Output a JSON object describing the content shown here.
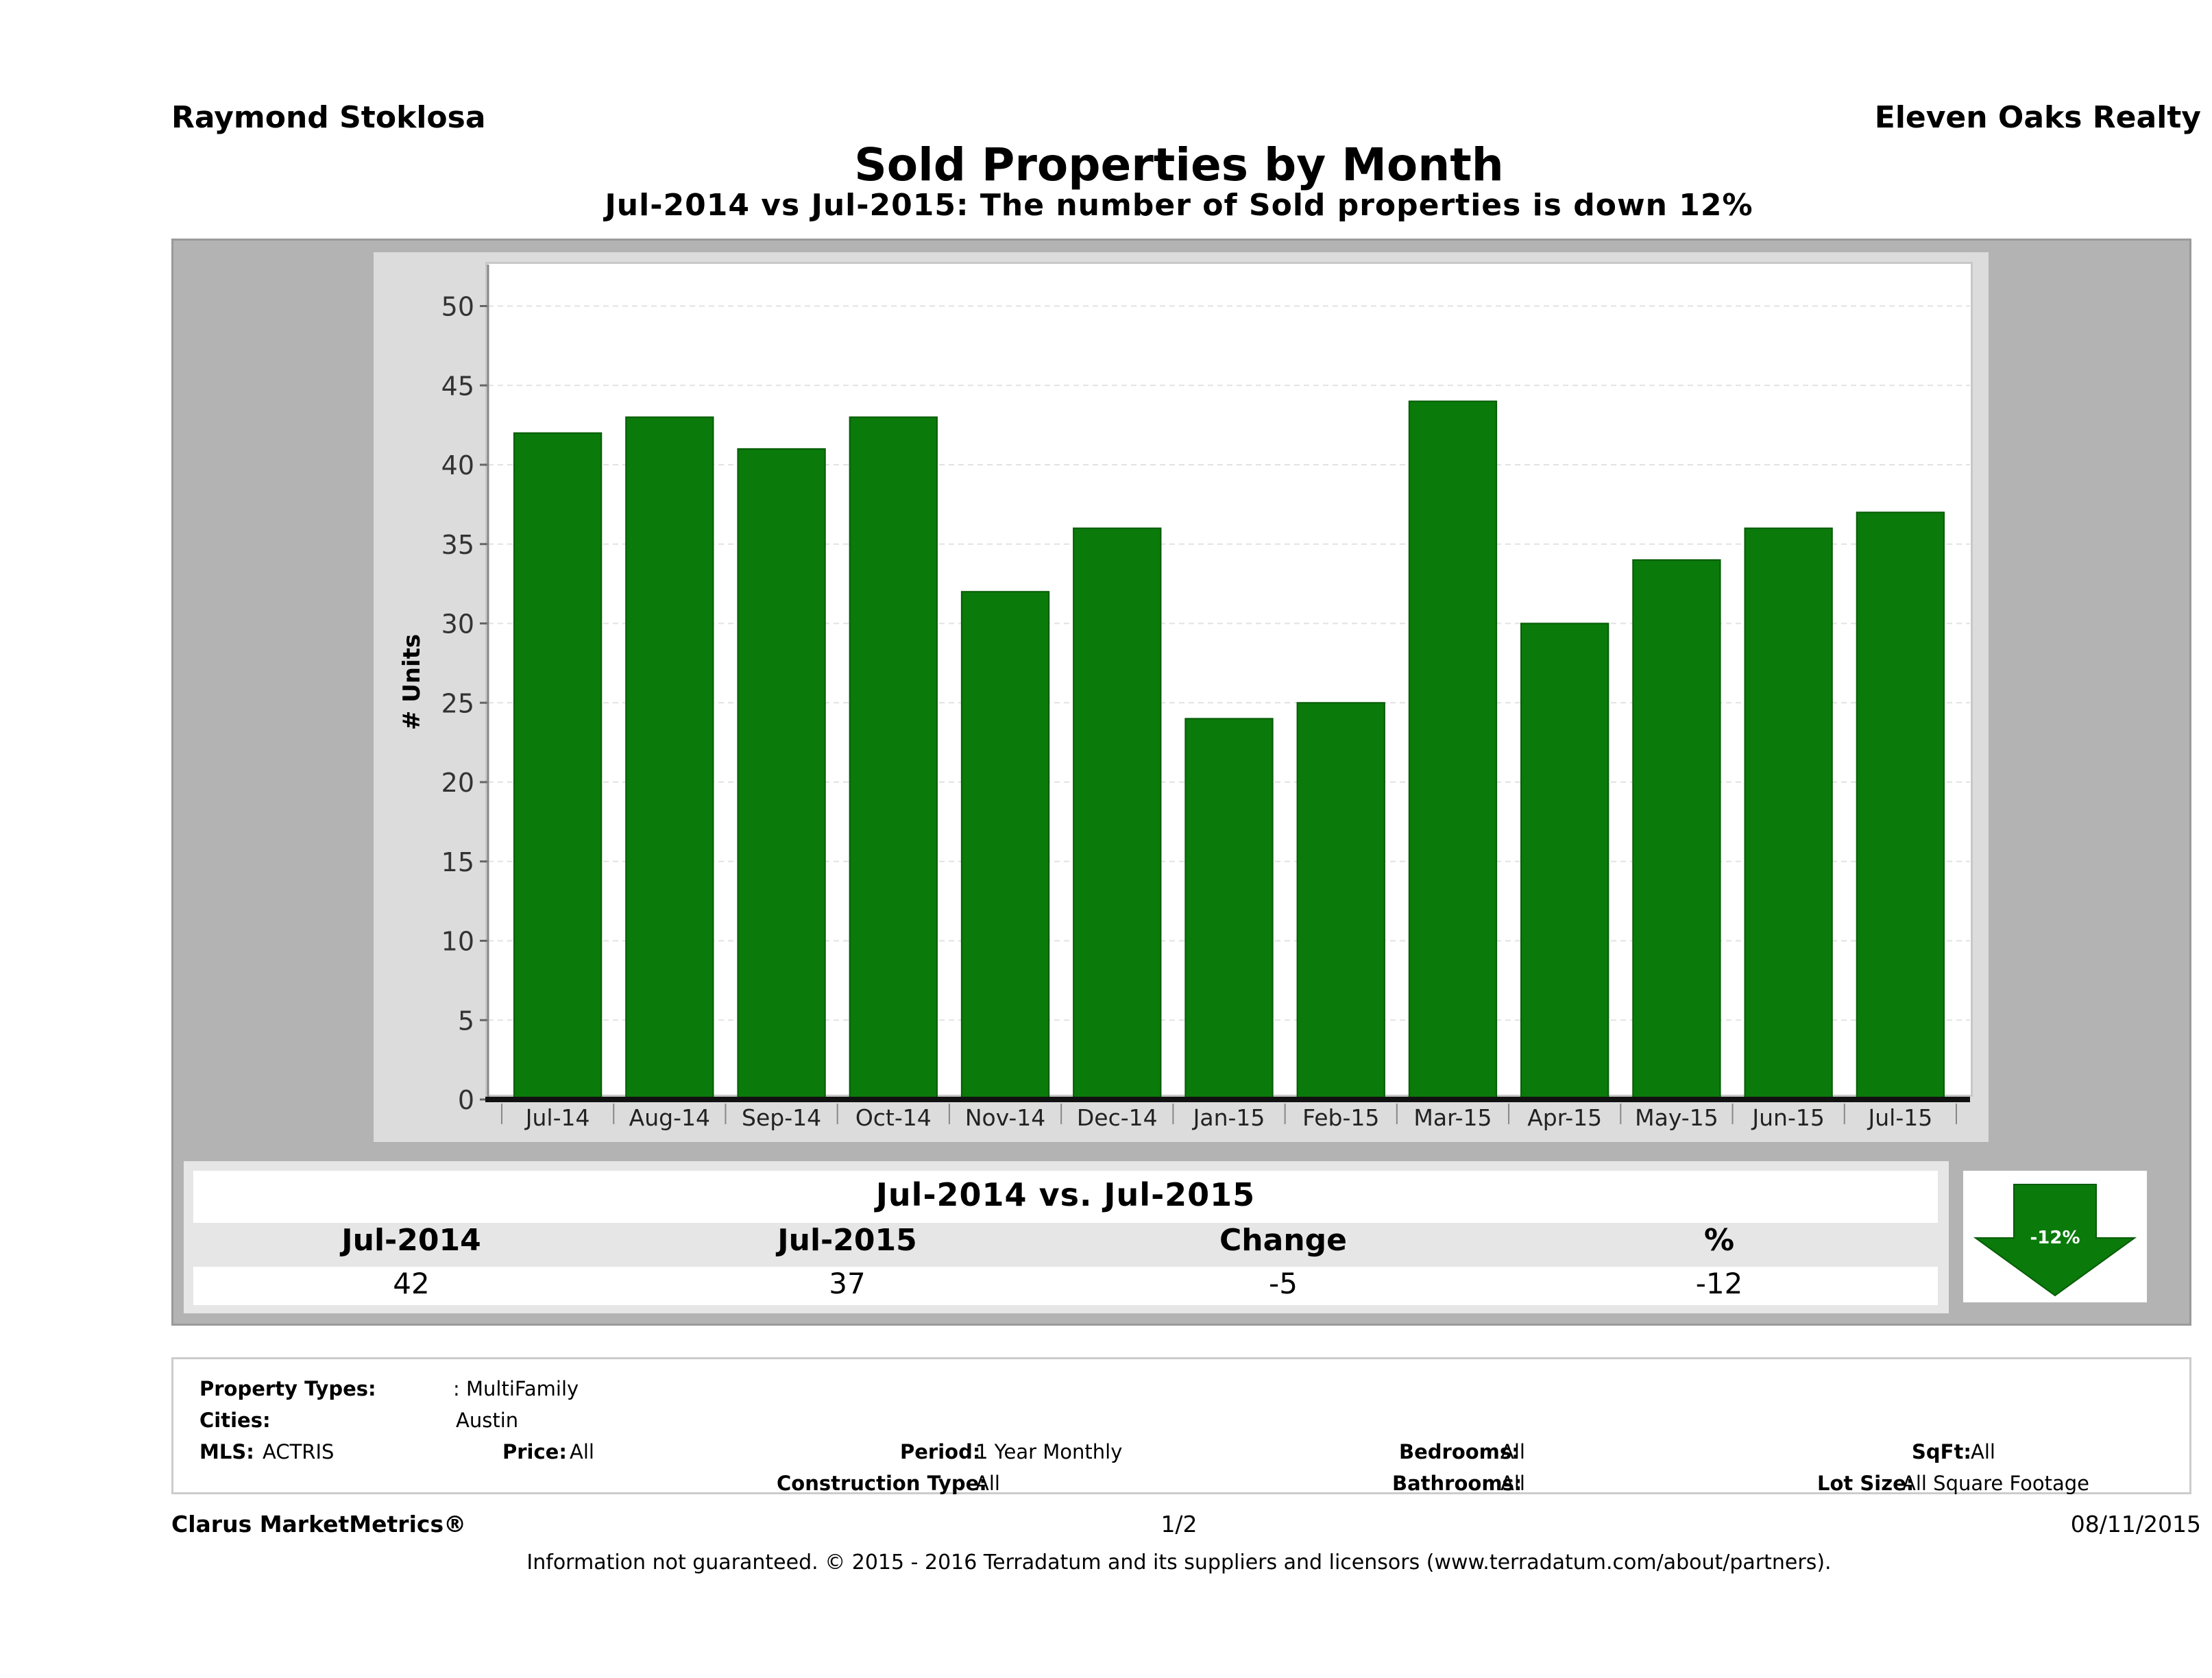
{
  "header": {
    "agent": "Raymond Stoklosa",
    "company": "Eleven Oaks Realty",
    "title": "Sold Properties by Month",
    "subtitle": "Jul-2014 vs Jul-2015: The number of Sold  properties is down 12%"
  },
  "colors": {
    "bar": "#0a7a0a",
    "bar_edge": "#075c07",
    "arrow": "#0a7a0a"
  },
  "chart_data": {
    "type": "bar",
    "title": "Sold Properties by Month",
    "xlabel": "",
    "ylabel": "# Units",
    "ylim": [
      0,
      50
    ],
    "yticks": [
      0,
      5,
      10,
      15,
      20,
      25,
      30,
      35,
      40,
      45,
      50
    ],
    "grid": true,
    "categories": [
      "Jul-14",
      "Aug-14",
      "Sep-14",
      "Oct-14",
      "Nov-14",
      "Dec-14",
      "Jan-15",
      "Feb-15",
      "Mar-15",
      "Apr-15",
      "May-15",
      "Jun-15",
      "Jul-15"
    ],
    "values": [
      42,
      43,
      41,
      43,
      32,
      36,
      24,
      25,
      44,
      30,
      34,
      36,
      37
    ]
  },
  "summary": {
    "title": "Jul-2014 vs. Jul-2015",
    "headers": [
      "Jul-2014",
      "Jul-2015",
      "Change",
      "%"
    ],
    "values": [
      "42",
      "37",
      "-5",
      "-12"
    ],
    "badge": "-12%"
  },
  "filters": {
    "property_types_label": "Property Types:",
    "property_types_value": ": MultiFamily",
    "cities_label": "Cities:",
    "cities_value": "Austin",
    "mls_label": "MLS:",
    "mls_value": "ACTRIS",
    "price_label": "Price:",
    "price_value": "All",
    "period_label": "Period:",
    "period_value": "1 Year Monthly",
    "construction_label": "Construction Type:",
    "construction_value": "All",
    "bedrooms_label": "Bedrooms:",
    "bedrooms_value": "All",
    "bathrooms_label": "Bathrooms:",
    "bathrooms_value": "All",
    "sqft_label": "SqFt:",
    "sqft_value": "All",
    "lotsize_label": "Lot Size:",
    "lotsize_value": "All Square Footage"
  },
  "footer": {
    "brand": "Clarus MarketMetrics®",
    "page": "1/2",
    "date": "08/11/2015",
    "disclaimer": "Information not guaranteed. © 2015 - 2016 Terradatum and its suppliers and licensors (www.terradatum.com/about/partners)."
  }
}
